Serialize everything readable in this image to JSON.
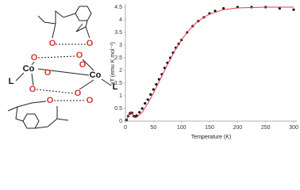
{
  "structure": {
    "atoms": [
      "O",
      "O",
      "O",
      "O",
      "Co",
      "Co",
      "L",
      "L",
      "O",
      "O",
      "O",
      "O",
      "O",
      "O"
    ]
  },
  "chart_data": {
    "type": "scatter",
    "y_label": "χT (emu K mol⁻¹)",
    "x_label": "Temperature (K)",
    "xlim": [
      0,
      300
    ],
    "xticks": [
      0,
      50,
      100,
      150,
      200,
      250,
      300
    ],
    "ylim": [
      0,
      4.5
    ],
    "yticks": [
      0,
      0.5,
      1,
      1.5,
      2,
      2.5,
      3,
      3.5,
      4,
      4.5
    ],
    "grid": false,
    "series": [
      {
        "mode": "markers",
        "color": "#111111",
        "x": [
          2,
          5,
          8,
          10,
          12,
          15,
          17,
          20,
          25,
          30,
          35,
          40,
          45,
          50,
          55,
          60,
          65,
          70,
          75,
          80,
          85,
          90,
          95,
          100,
          110,
          120,
          130,
          140,
          150,
          160,
          175,
          200,
          225,
          250,
          275,
          300
        ],
        "values": [
          0.05,
          0.2,
          0.3,
          0.33,
          0.32,
          0.2,
          0.18,
          0.22,
          0.35,
          0.5,
          0.7,
          0.85,
          1.05,
          1.25,
          1.45,
          1.65,
          1.85,
          2.1,
          2.3,
          2.5,
          2.7,
          2.9,
          3.05,
          3.2,
          3.5,
          3.75,
          3.95,
          4.1,
          4.25,
          4.35,
          4.45,
          4.5,
          4.5,
          4.5,
          4.45,
          4.4
        ]
      },
      {
        "mode": "line",
        "color": "#e8384f",
        "x": [
          2,
          6,
          10,
          13,
          16,
          20,
          30,
          40,
          50,
          60,
          70,
          80,
          90,
          100,
          110,
          120,
          130,
          140,
          150,
          175,
          200,
          250,
          300
        ],
        "values": [
          0.05,
          0.25,
          0.35,
          0.3,
          0.15,
          0.15,
          0.35,
          0.7,
          1.1,
          1.55,
          2.0,
          2.45,
          2.85,
          3.2,
          3.5,
          3.75,
          3.95,
          4.1,
          4.22,
          4.4,
          4.47,
          4.5,
          4.5
        ]
      }
    ]
  }
}
